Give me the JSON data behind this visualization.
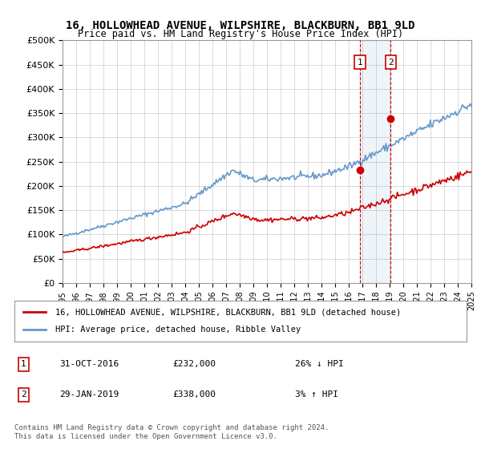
{
  "title": "16, HOLLOWHEAD AVENUE, WILPSHIRE, BLACKBURN, BB1 9LD",
  "subtitle": "Price paid vs. HM Land Registry's House Price Index (HPI)",
  "ylim": [
    0,
    500000
  ],
  "yticks": [
    0,
    50000,
    100000,
    150000,
    200000,
    250000,
    300000,
    350000,
    400000,
    450000,
    500000
  ],
  "ytick_labels": [
    "£0",
    "£50K",
    "£100K",
    "£150K",
    "£200K",
    "£250K",
    "£300K",
    "£350K",
    "£400K",
    "£450K",
    "£500K"
  ],
  "transaction1_date": 2016.83,
  "transaction1_price": 232000,
  "transaction1_label": "1",
  "transaction2_date": 2019.08,
  "transaction2_price": 338000,
  "transaction2_label": "2",
  "red_color": "#cc0000",
  "blue_color": "#6699cc",
  "legend_red_label": "16, HOLLOWHEAD AVENUE, WILPSHIRE, BLACKBURN, BB1 9LD (detached house)",
  "legend_blue_label": "HPI: Average price, detached house, Ribble Valley",
  "table_row1": [
    "1",
    "31-OCT-2016",
    "£232,000",
    "26% ↓ HPI"
  ],
  "table_row2": [
    "2",
    "29-JAN-2019",
    "£338,000",
    "3% ↑ HPI"
  ],
  "footer": "Contains HM Land Registry data © Crown copyright and database right 2024.\nThis data is licensed under the Open Government Licence v3.0.",
  "background_color": "#ffffff",
  "grid_color": "#cccccc"
}
